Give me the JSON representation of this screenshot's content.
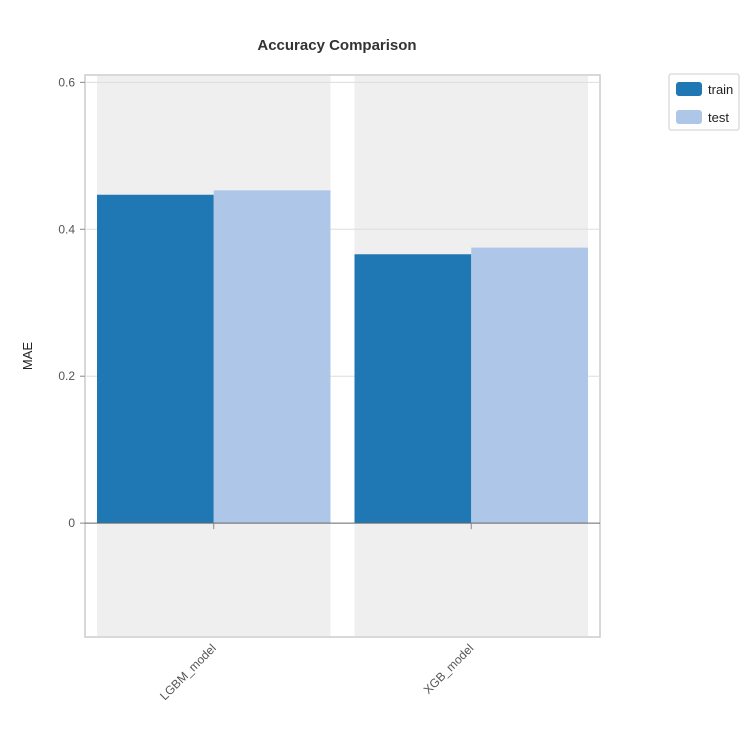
{
  "chart_data": {
    "type": "bar",
    "title": "Accuracy Comparison",
    "xlabel": "",
    "ylabel": "MAE",
    "categories": [
      "LGBM_model",
      "XGB_model"
    ],
    "series": [
      {
        "name": "train",
        "color": "#1f77b4",
        "values": [
          0.447,
          0.366
        ]
      },
      {
        "name": "test",
        "color": "#aec7e8",
        "values": [
          0.453,
          0.375
        ]
      }
    ],
    "ylim": [
      -0.155,
      0.61
    ],
    "yticks": [
      0,
      0.2,
      0.4,
      0.6
    ],
    "ytick_labels": [
      "0",
      "0.2",
      "0.4",
      "0.6"
    ],
    "grid": true,
    "legend_position": "top-right",
    "category_band_color": "#efefef"
  }
}
